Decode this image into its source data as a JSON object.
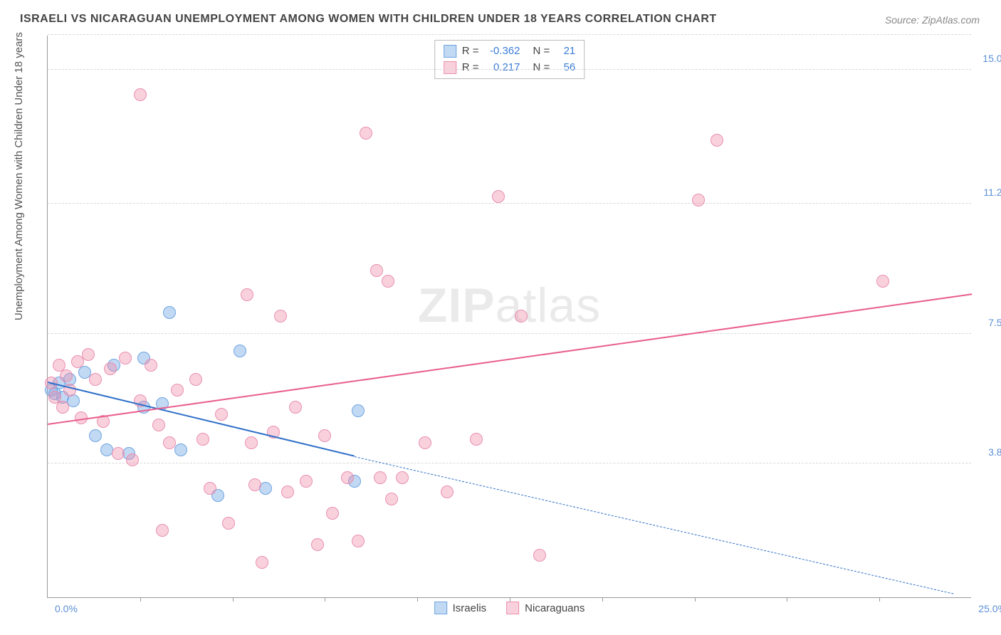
{
  "title": "ISRAELI VS NICARAGUAN UNEMPLOYMENT AMONG WOMEN WITH CHILDREN UNDER 18 YEARS CORRELATION CHART",
  "source": "Source: ZipAtlas.com",
  "y_axis_label": "Unemployment Among Women with Children Under 18 years",
  "watermark_a": "ZIP",
  "watermark_b": "atlas",
  "chart": {
    "xlim": [
      0,
      25
    ],
    "ylim": [
      0,
      16
    ],
    "x_origin_label": "0.0%",
    "x_max_label": "25.0%",
    "y_ticks": [
      {
        "v": 3.8,
        "label": "3.8%"
      },
      {
        "v": 7.5,
        "label": "7.5%"
      },
      {
        "v": 11.2,
        "label": "11.2%"
      },
      {
        "v": 15.0,
        "label": "15.0%"
      }
    ],
    "x_tick_positions": [
      2.5,
      5,
      7.5,
      10,
      12.5,
      15,
      17.5,
      20,
      22.5
    ],
    "grid_color": "#d8d8d8",
    "background_color": "#ffffff",
    "point_radius": 9,
    "series": [
      {
        "key": "israelis",
        "label": "Israelis",
        "fill": "rgba(120,170,230,0.45)",
        "stroke": "#6fa4e0",
        "line_color": "#2f6fc9",
        "R": "-0.362",
        "N": "21",
        "trend": {
          "x1": 0,
          "y1": 6.1,
          "x2_solid": 8.3,
          "y2_solid": 4.0,
          "x2": 24.5,
          "y2": 0.1
        },
        "points": [
          [
            0.1,
            5.9
          ],
          [
            0.2,
            5.8
          ],
          [
            0.3,
            6.1
          ],
          [
            0.4,
            5.7
          ],
          [
            0.6,
            6.2
          ],
          [
            0.7,
            5.6
          ],
          [
            1.0,
            6.4
          ],
          [
            1.3,
            4.6
          ],
          [
            1.6,
            4.2
          ],
          [
            1.8,
            6.6
          ],
          [
            2.2,
            4.1
          ],
          [
            2.6,
            5.4
          ],
          [
            2.6,
            6.8
          ],
          [
            3.1,
            5.5
          ],
          [
            3.3,
            8.1
          ],
          [
            3.6,
            4.2
          ],
          [
            4.6,
            2.9
          ],
          [
            5.2,
            7.0
          ],
          [
            5.9,
            3.1
          ],
          [
            8.3,
            3.3
          ],
          [
            8.4,
            5.3
          ]
        ]
      },
      {
        "key": "nicaraguans",
        "label": "Nicaraguans",
        "fill": "rgba(240,140,170,0.40)",
        "stroke": "#e98fb0",
        "line_color": "#e95f8f",
        "R": "0.217",
        "N": "56",
        "trend": {
          "x1": 0,
          "y1": 4.9,
          "x2_solid": 25,
          "y2_solid": 8.6,
          "x2": 25,
          "y2": 8.6
        },
        "points": [
          [
            0.1,
            6.1
          ],
          [
            0.2,
            5.7
          ],
          [
            0.3,
            6.6
          ],
          [
            0.4,
            5.4
          ],
          [
            0.5,
            6.3
          ],
          [
            0.6,
            5.9
          ],
          [
            0.8,
            6.7
          ],
          [
            0.9,
            5.1
          ],
          [
            1.1,
            6.9
          ],
          [
            1.3,
            6.2
          ],
          [
            1.5,
            5.0
          ],
          [
            1.7,
            6.5
          ],
          [
            1.9,
            4.1
          ],
          [
            2.1,
            6.8
          ],
          [
            2.3,
            3.9
          ],
          [
            2.5,
            5.6
          ],
          [
            2.5,
            14.3
          ],
          [
            2.8,
            6.6
          ],
          [
            3.0,
            4.9
          ],
          [
            3.1,
            1.9
          ],
          [
            3.3,
            4.4
          ],
          [
            3.5,
            5.9
          ],
          [
            4.0,
            6.2
          ],
          [
            4.2,
            4.5
          ],
          [
            4.4,
            3.1
          ],
          [
            4.7,
            5.2
          ],
          [
            4.9,
            2.1
          ],
          [
            5.4,
            8.6
          ],
          [
            5.5,
            4.4
          ],
          [
            5.6,
            3.2
          ],
          [
            5.8,
            1.0
          ],
          [
            6.1,
            4.7
          ],
          [
            6.3,
            8.0
          ],
          [
            6.5,
            3.0
          ],
          [
            6.7,
            5.4
          ],
          [
            7.0,
            3.3
          ],
          [
            7.3,
            1.5
          ],
          [
            7.5,
            4.6
          ],
          [
            7.7,
            2.4
          ],
          [
            8.1,
            3.4
          ],
          [
            8.4,
            1.6
          ],
          [
            8.6,
            13.2
          ],
          [
            8.9,
            9.3
          ],
          [
            9.0,
            3.4
          ],
          [
            9.2,
            9.0
          ],
          [
            9.3,
            2.8
          ],
          [
            9.6,
            3.4
          ],
          [
            10.2,
            4.4
          ],
          [
            10.8,
            3.0
          ],
          [
            11.6,
            4.5
          ],
          [
            12.2,
            11.4
          ],
          [
            12.8,
            8.0
          ],
          [
            13.3,
            1.2
          ],
          [
            17.6,
            11.3
          ],
          [
            18.1,
            13.0
          ],
          [
            22.6,
            9.0
          ]
        ]
      }
    ]
  }
}
